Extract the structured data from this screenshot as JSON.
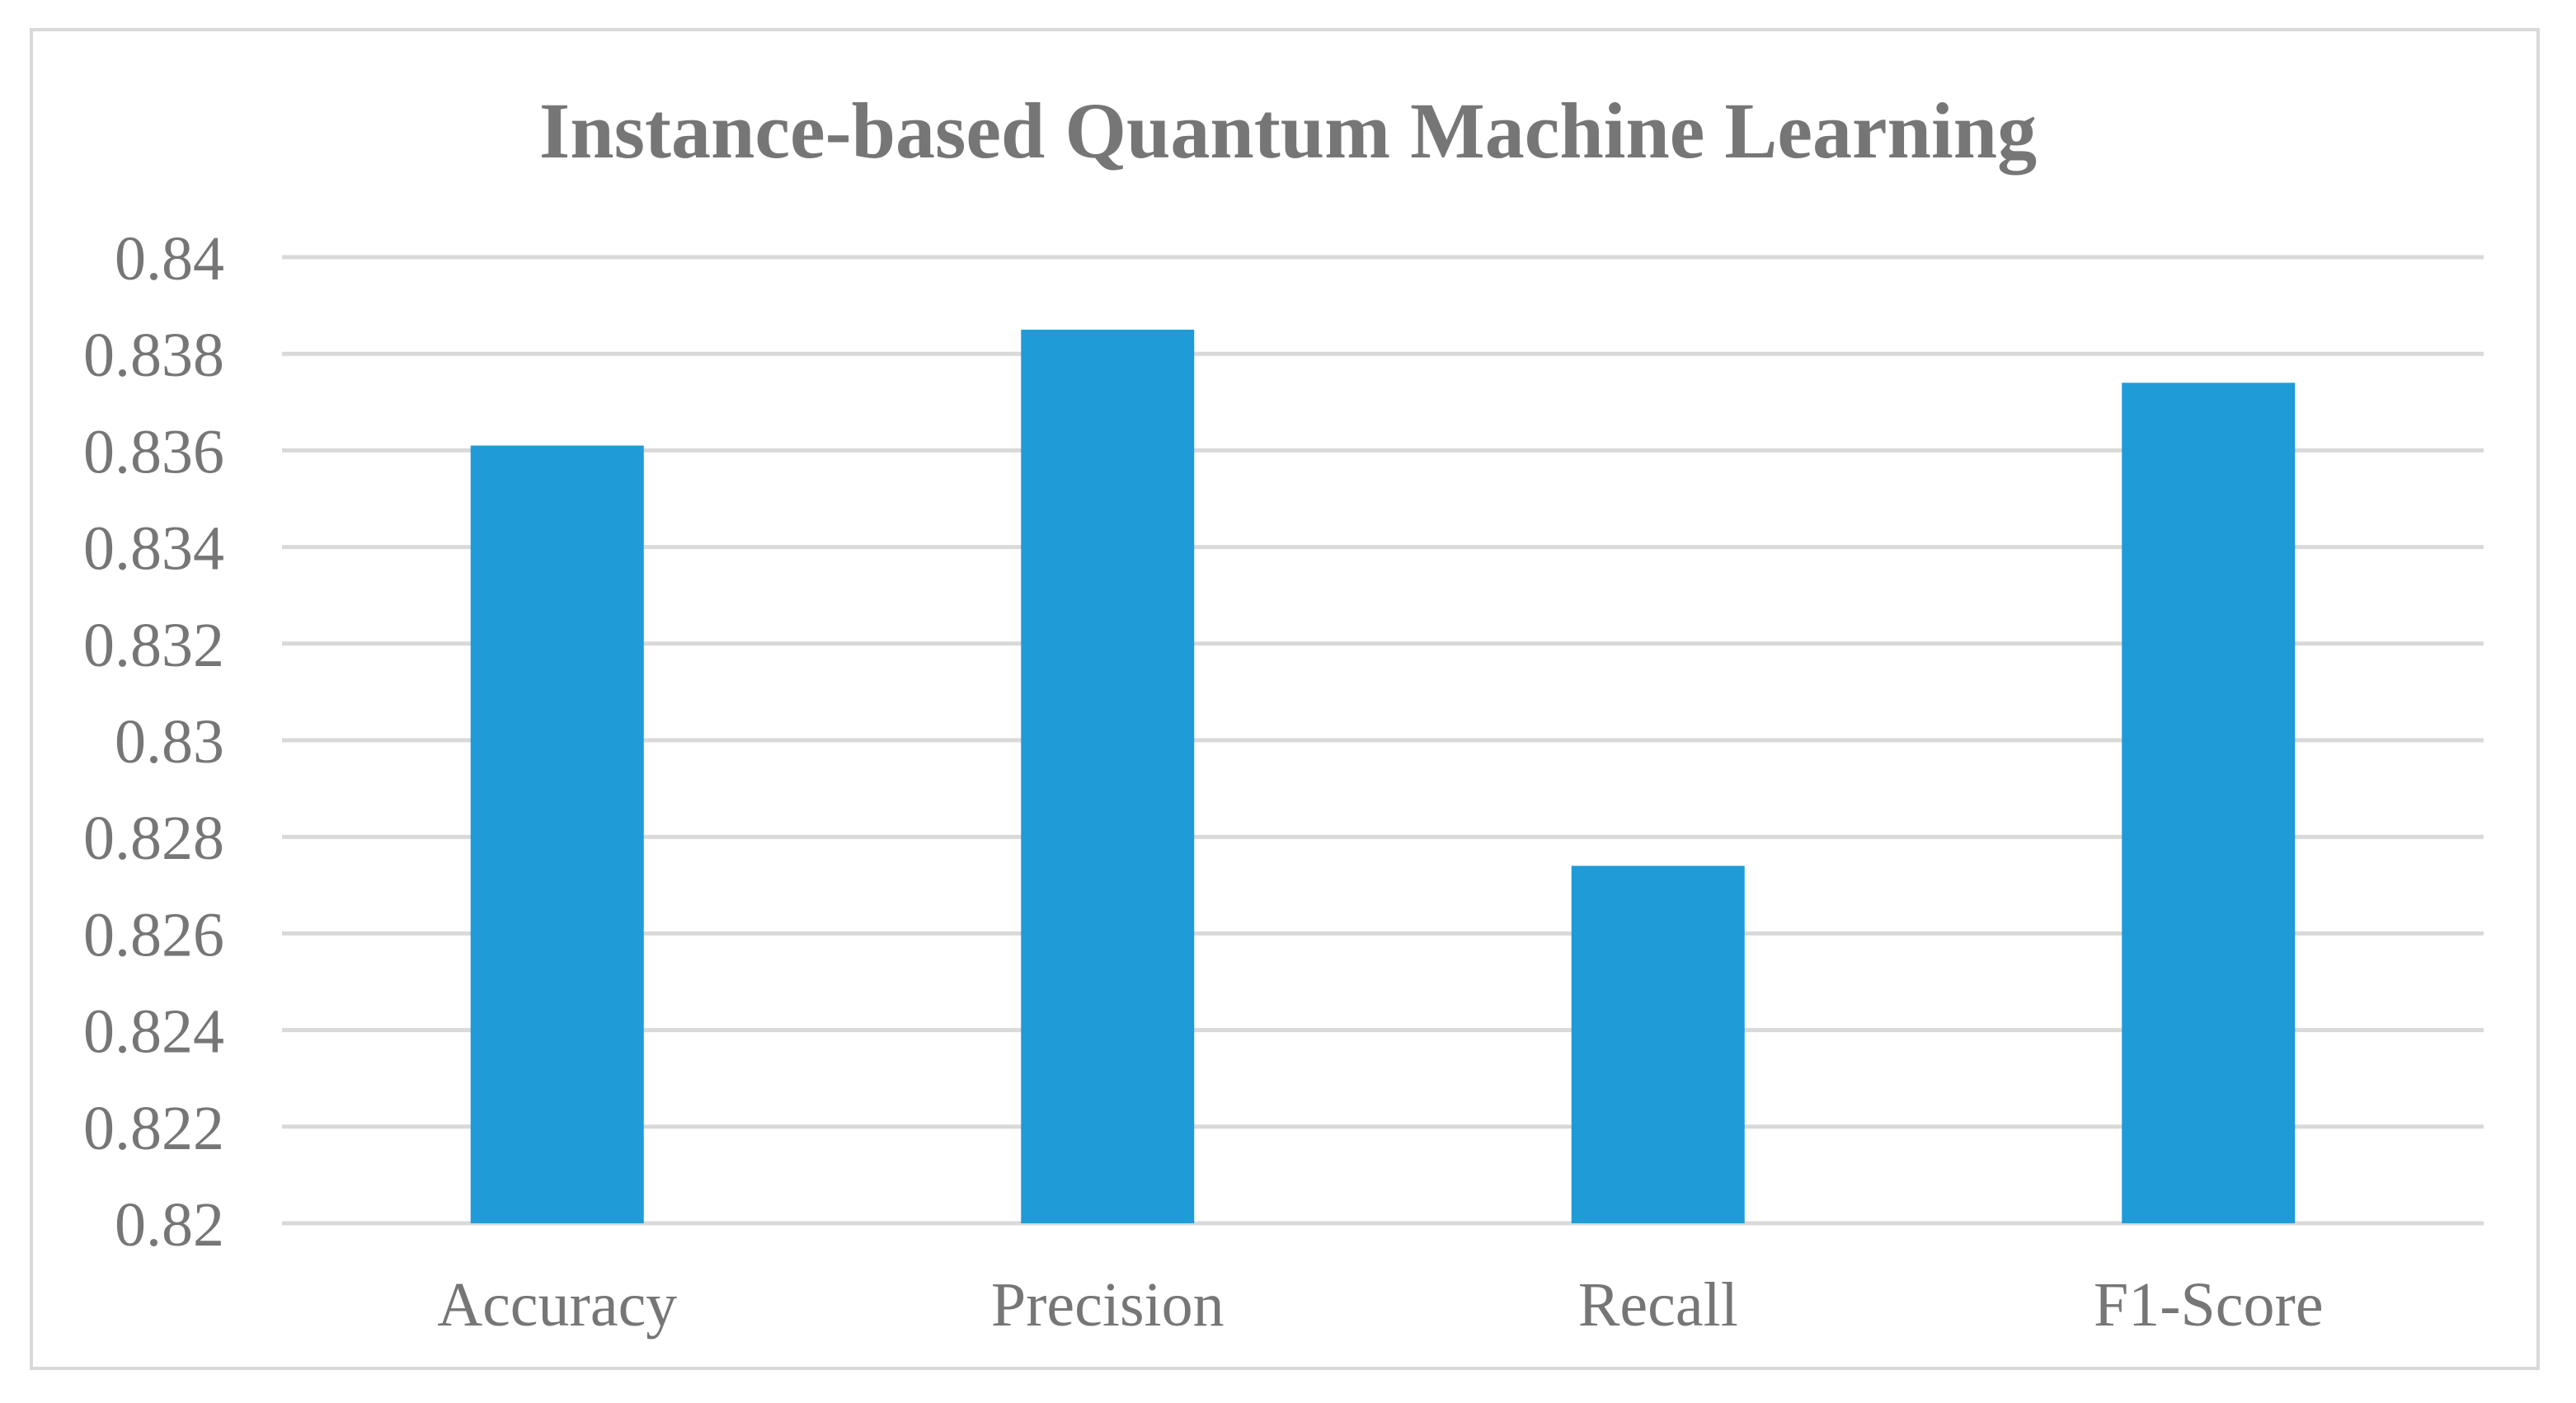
{
  "chart_data": {
    "type": "bar",
    "title": "Instance-based Quantum Machine Learning",
    "xlabel": "",
    "ylabel": "",
    "categories": [
      "Accuracy",
      "Precision",
      "Recall",
      "F1-Score"
    ],
    "values": [
      0.8361,
      0.8385,
      0.8274,
      0.8374
    ],
    "ylim": [
      0.82,
      0.84
    ],
    "yticks": [
      0.82,
      0.822,
      0.824,
      0.826,
      0.828,
      0.83,
      0.832,
      0.834,
      0.836,
      0.838,
      0.84
    ],
    "ytick_labels": [
      "0.82",
      "0.822",
      "0.824",
      "0.826",
      "0.828",
      "0.83",
      "0.832",
      "0.834",
      "0.836",
      "0.838",
      "0.84"
    ],
    "grid": true,
    "legend": "none",
    "bar_color": "#1f9bd7",
    "grid_color": "#d9d9d9",
    "text_color": "#767676"
  }
}
